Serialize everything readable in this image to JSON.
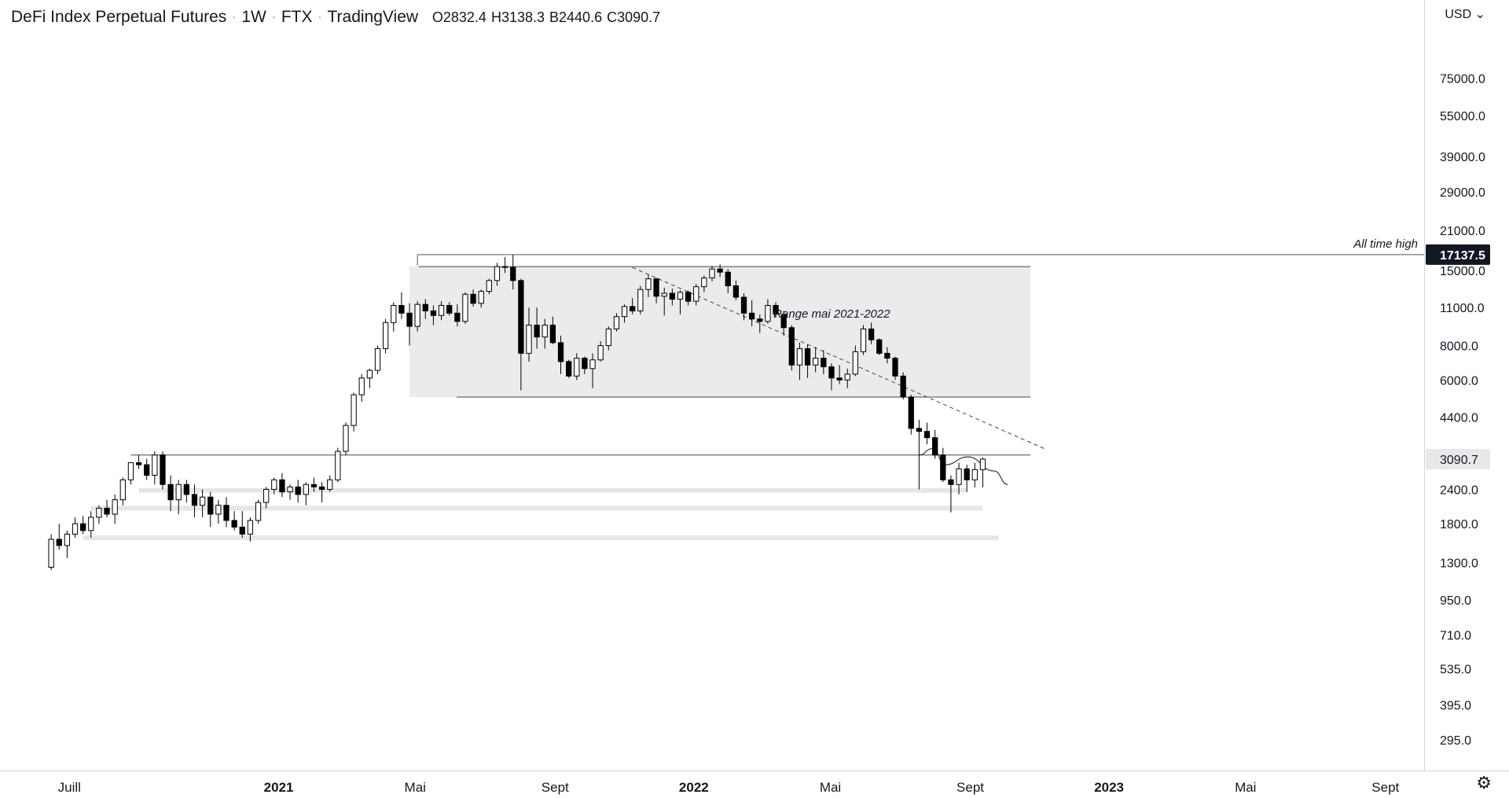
{
  "header": {
    "symbol": "DeFi Index Perpetual Futures",
    "interval": "1W",
    "exchange": "FTX",
    "source": "TradingView",
    "open": "O2832.4",
    "high": "H3138.3",
    "low": "B2440.6",
    "close": "C3090.7"
  },
  "currency_selector": {
    "label": "USD"
  },
  "chart_data": {
    "type": "candlestick",
    "title": "DeFi Index Perpetual Futures · 1W · FTX · TradingView",
    "y_scale": "log",
    "ylim": [
      260,
      90000
    ],
    "y_ticks": [
      {
        "value": 75000,
        "label": "75000.0"
      },
      {
        "value": 55000,
        "label": "55000.0"
      },
      {
        "value": 39000,
        "label": "39000.0"
      },
      {
        "value": 29000,
        "label": "29000.0"
      },
      {
        "value": 21000,
        "label": "21000.0"
      },
      {
        "value": 15000,
        "label": "15000.0"
      },
      {
        "value": 11000,
        "label": "11000.0"
      },
      {
        "value": 8000,
        "label": "8000.0"
      },
      {
        "value": 6000,
        "label": "6000.0"
      },
      {
        "value": 4400,
        "label": "4400.0"
      },
      {
        "value": 2400,
        "label": "2400.0"
      },
      {
        "value": 1800,
        "label": "1800.0"
      },
      {
        "value": 1300,
        "label": "1300.0"
      },
      {
        "value": 950,
        "label": "950.0"
      },
      {
        "value": 710,
        "label": "710.0"
      },
      {
        "value": 535,
        "label": "535.0"
      },
      {
        "value": 395,
        "label": "395.0"
      },
      {
        "value": 295,
        "label": "295.0"
      }
    ],
    "x_ticks": [
      {
        "label": "Juill",
        "date": "2020-07-01",
        "bold": false
      },
      {
        "label": "2021",
        "date": "2021-01-01",
        "bold": true
      },
      {
        "label": "Mai",
        "date": "2021-05-01",
        "bold": false
      },
      {
        "label": "Sept",
        "date": "2021-09-01",
        "bold": false
      },
      {
        "label": "2022",
        "date": "2022-01-01",
        "bold": true
      },
      {
        "label": "Mai",
        "date": "2022-05-01",
        "bold": false
      },
      {
        "label": "Sept",
        "date": "2022-09-01",
        "bold": false
      },
      {
        "label": "2023",
        "date": "2023-01-01",
        "bold": true
      },
      {
        "label": "Mai",
        "date": "2023-05-01",
        "bold": false
      },
      {
        "label": "Sept",
        "date": "2023-09-01",
        "bold": false
      }
    ],
    "xlim": [
      "2020-05-01",
      "2023-10-05"
    ],
    "series_start": "2020-06-15",
    "candles": [
      [
        1250,
        1650,
        1220,
        1580
      ],
      [
        1580,
        1800,
        1450,
        1500
      ],
      [
        1500,
        1700,
        1350,
        1650
      ],
      [
        1650,
        1900,
        1600,
        1800
      ],
      [
        1800,
        1920,
        1650,
        1700
      ],
      [
        1700,
        2000,
        1600,
        1900
      ],
      [
        1900,
        2100,
        1800,
        2050
      ],
      [
        2050,
        2200,
        1900,
        1950
      ],
      [
        1950,
        2300,
        1800,
        2200
      ],
      [
        2200,
        2650,
        2100,
        2600
      ],
      [
        2600,
        3000,
        2500,
        3000
      ],
      [
        3000,
        3200,
        2850,
        2950
      ],
      [
        2950,
        3100,
        2600,
        2700
      ],
      [
        2700,
        3300,
        2500,
        3200
      ],
      [
        3200,
        3300,
        2400,
        2500
      ],
      [
        2500,
        2700,
        2000,
        2200
      ],
      [
        2200,
        2600,
        1950,
        2500
      ],
      [
        2500,
        2600,
        2150,
        2300
      ],
      [
        2300,
        2500,
        1900,
        2100
      ],
      [
        2100,
        2400,
        1900,
        2250
      ],
      [
        2250,
        2350,
        1750,
        1950
      ],
      [
        1950,
        2200,
        1800,
        2100
      ],
      [
        2100,
        2250,
        1750,
        1850
      ],
      [
        1850,
        2000,
        1700,
        1750
      ],
      [
        1750,
        2000,
        1600,
        1650
      ],
      [
        1650,
        1900,
        1550,
        1850
      ],
      [
        1850,
        2200,
        1800,
        2150
      ],
      [
        2150,
        2450,
        2050,
        2400
      ],
      [
        2400,
        2650,
        2300,
        2600
      ],
      [
        2600,
        2750,
        2250,
        2350
      ],
      [
        2350,
        2500,
        2200,
        2450
      ],
      [
        2450,
        2600,
        2150,
        2300
      ],
      [
        2300,
        2550,
        2100,
        2500
      ],
      [
        2500,
        2650,
        2350,
        2450
      ],
      [
        2450,
        2550,
        2150,
        2400
      ],
      [
        2400,
        2700,
        2350,
        2600
      ],
      [
        2600,
        3400,
        2550,
        3300
      ],
      [
        3300,
        4200,
        3200,
        4100
      ],
      [
        4100,
        5400,
        3900,
        5300
      ],
      [
        5300,
        6300,
        5000,
        6100
      ],
      [
        6100,
        6600,
        5600,
        6500
      ],
      [
        6500,
        8000,
        6300,
        7800
      ],
      [
        7800,
        10000,
        7500,
        9700
      ],
      [
        9700,
        11500,
        9000,
        11200
      ],
      [
        11200,
        12500,
        10000,
        10500
      ],
      [
        10500,
        11400,
        8000,
        9400
      ],
      [
        9400,
        11600,
        9000,
        11300
      ],
      [
        11300,
        11800,
        10000,
        10700
      ],
      [
        10700,
        11200,
        9500,
        10300
      ],
      [
        10300,
        11600,
        9900,
        11200
      ],
      [
        11200,
        11500,
        10300,
        10500
      ],
      [
        10500,
        11300,
        9400,
        9800
      ],
      [
        9800,
        12500,
        9600,
        12300
      ],
      [
        12300,
        12800,
        11100,
        11400
      ],
      [
        11400,
        12800,
        11000,
        12600
      ],
      [
        12600,
        14000,
        12300,
        13800
      ],
      [
        13800,
        16000,
        13200,
        15500
      ],
      [
        15500,
        16800,
        14700,
        15400
      ],
      [
        15400,
        17137.5,
        12800,
        13800
      ],
      [
        13800,
        14000,
        5500,
        7500
      ],
      [
        7500,
        11000,
        7000,
        9500
      ],
      [
        9500,
        11000,
        7800,
        8600
      ],
      [
        8600,
        10000,
        7800,
        9500
      ],
      [
        9500,
        10200,
        8100,
        8200
      ],
      [
        8200,
        8700,
        6300,
        7000
      ],
      [
        7000,
        7100,
        6100,
        6200
      ],
      [
        6200,
        7500,
        6000,
        7200
      ],
      [
        7200,
        7300,
        6300,
        6600
      ],
      [
        6600,
        7500,
        5600,
        7100
      ],
      [
        7100,
        8300,
        7000,
        8000
      ],
      [
        8000,
        9400,
        7700,
        9200
      ],
      [
        9200,
        10500,
        9000,
        10200
      ],
      [
        10200,
        11300,
        9700,
        11100
      ],
      [
        11100,
        11900,
        10400,
        10700
      ],
      [
        10700,
        13200,
        10400,
        12800
      ],
      [
        12800,
        14500,
        12000,
        14000
      ],
      [
        14000,
        14100,
        11400,
        12100
      ],
      [
        12100,
        13000,
        10300,
        12400
      ],
      [
        12400,
        12900,
        11200,
        11800
      ],
      [
        11800,
        12700,
        10400,
        12500
      ],
      [
        12500,
        12700,
        11200,
        11600
      ],
      [
        11600,
        13400,
        11200,
        13100
      ],
      [
        13100,
        14400,
        12500,
        14100
      ],
      [
        14100,
        15600,
        13700,
        15200
      ],
      [
        15200,
        15800,
        14200,
        14800
      ],
      [
        14800,
        15200,
        12400,
        13200
      ],
      [
        13200,
        13800,
        11700,
        12000
      ],
      [
        12000,
        12400,
        9900,
        10500
      ],
      [
        10500,
        11700,
        9400,
        10000
      ],
      [
        10000,
        10400,
        8900,
        9800
      ],
      [
        9800,
        11800,
        9600,
        11200
      ],
      [
        11200,
        11500,
        10100,
        10400
      ],
      [
        10400,
        10700,
        8700,
        9300
      ],
      [
        9300,
        9500,
        6500,
        6800
      ],
      [
        6800,
        8200,
        6000,
        7800
      ],
      [
        7800,
        8100,
        6100,
        6800
      ],
      [
        6800,
        7900,
        6400,
        7200
      ],
      [
        7200,
        7700,
        6300,
        6700
      ],
      [
        6700,
        6900,
        5500,
        6100
      ],
      [
        6100,
        6800,
        5800,
        6000
      ],
      [
        6000,
        6600,
        5600,
        6300
      ],
      [
        6300,
        8000,
        6200,
        7600
      ],
      [
        7600,
        9500,
        7400,
        9200
      ],
      [
        9200,
        9700,
        8100,
        8400
      ],
      [
        8400,
        8500,
        7400,
        7500
      ],
      [
        7500,
        7900,
        6900,
        7200
      ],
      [
        7200,
        7300,
        6000,
        6200
      ],
      [
        6200,
        6400,
        5100,
        5200
      ],
      [
        5200,
        5300,
        3800,
        4000
      ],
      [
        4000,
        4300,
        2400,
        3900
      ],
      [
        3900,
        4200,
        3500,
        3700
      ],
      [
        3700,
        3950,
        3100,
        3200
      ],
      [
        3200,
        3400,
        2550,
        2600
      ],
      [
        2600,
        2700,
        1980,
        2500
      ],
      [
        2500,
        3000,
        2300,
        2850
      ],
      [
        2850,
        2950,
        2350,
        2600
      ],
      [
        2600,
        3000,
        2440.6,
        2832.4
      ],
      [
        2832.4,
        3138.3,
        2440.6,
        3090.7
      ]
    ],
    "range_box": {
      "label": "Range mai 2021-2022",
      "top": 15500,
      "bottom": 5200,
      "x_start": "2021-04-26",
      "x_end": "2022-10-24"
    },
    "ath_line": {
      "label": "All time high",
      "value": 17137.5,
      "x_start": "2021-05-03"
    },
    "resistance_line": {
      "value": 3200,
      "x_start": "2020-08-24",
      "x_end": "2022-10-24"
    },
    "support_zones": [
      {
        "value": 2380,
        "x_start": "2020-08-31",
        "x_end": "2022-08-29"
      },
      {
        "value": 2050,
        "x_start": "2020-07-20",
        "x_end": "2022-09-12"
      },
      {
        "value": 1600,
        "x_start": "2020-07-13",
        "x_end": "2022-09-26"
      }
    ],
    "trendline": {
      "from": {
        "date": "2021-11-08",
        "value": 15400
      },
      "to": {
        "date": "2022-11-07",
        "value": 3350
      }
    },
    "projection_path": [
      {
        "date": "2022-07-18",
        "value": 3200
      },
      {
        "date": "2022-07-30",
        "value": 3380
      },
      {
        "date": "2022-08-10",
        "value": 2950
      },
      {
        "date": "2022-08-30",
        "value": 3150
      },
      {
        "date": "2022-09-22",
        "value": 2800
      },
      {
        "date": "2022-10-04",
        "value": 2500
      }
    ],
    "price_tags": [
      {
        "value": 17137.5,
        "label": "17137.5",
        "style": "dark"
      },
      {
        "value": 3090.7,
        "label": "3090.7",
        "style": "light"
      }
    ]
  },
  "settings": {
    "icon": "gear-icon"
  }
}
